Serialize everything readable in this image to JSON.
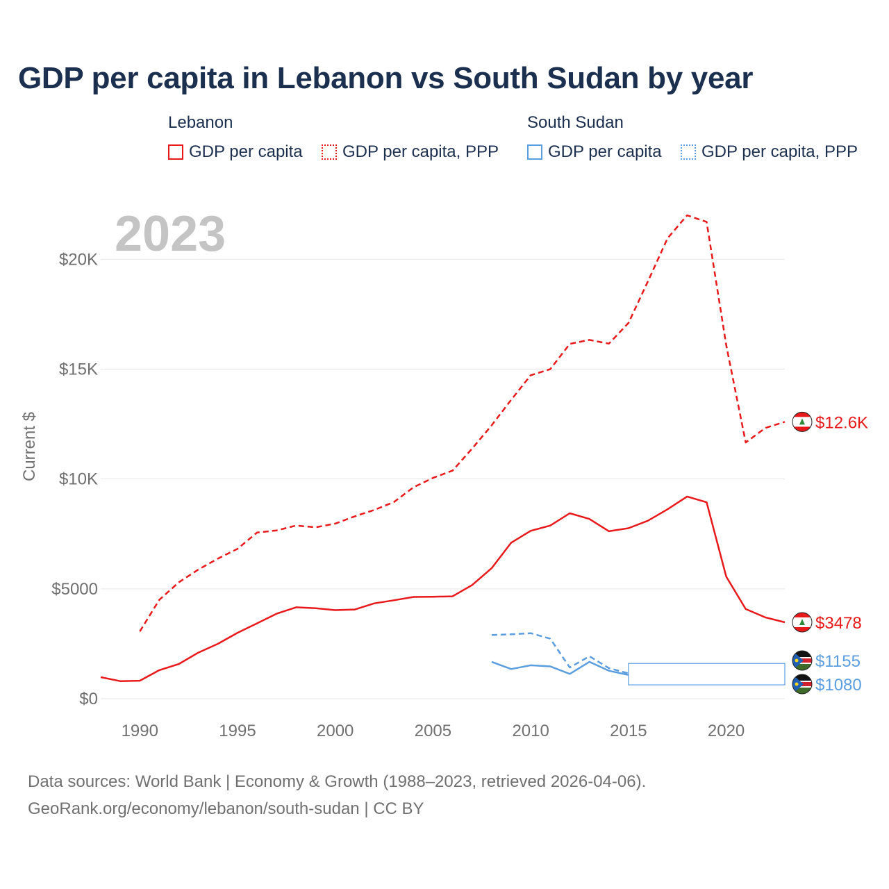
{
  "title": "GDP per capita in Lebanon vs South Sudan by year",
  "legend": {
    "groups": [
      {
        "name": "Lebanon",
        "items": [
          "GDP per capita",
          "GDP per capita, PPP"
        ],
        "color": "#e8191a"
      },
      {
        "name": "South Sudan",
        "items": [
          "GDP per capita",
          "GDP per capita, PPP"
        ],
        "color": "#5b9ee0"
      }
    ]
  },
  "year_watermark": "2023",
  "footer": {
    "line1": "Data sources: World Bank | Economy & Growth (1988–2023, retrieved 2026-04-06).",
    "line2": "GeoRank.org/economy/lebanon/south-sudan | CC BY"
  },
  "chart_data": {
    "type": "line",
    "title": "GDP per capita in Lebanon vs South Sudan by year",
    "xlabel": "",
    "ylabel": "Current $",
    "xlim": [
      1988,
      2023
    ],
    "ylim": [
      0,
      22000
    ],
    "x_ticks": [
      1990,
      1995,
      2000,
      2005,
      2010,
      2015,
      2020
    ],
    "y_ticks": [
      {
        "value": 0,
        "label": "$0"
      },
      {
        "value": 5000,
        "label": "$5000"
      },
      {
        "value": 10000,
        "label": "$10K"
      },
      {
        "value": 15000,
        "label": "$15K"
      },
      {
        "value": 20000,
        "label": "$20K"
      }
    ],
    "series": [
      {
        "name": "Lebanon GDP per capita",
        "country": "Lebanon",
        "color": "#e8191a",
        "dash": "solid",
        "end_label": "$3478",
        "points": [
          [
            1988,
            980
          ],
          [
            1989,
            800
          ],
          [
            1990,
            820
          ],
          [
            1991,
            1300
          ],
          [
            1992,
            1580
          ],
          [
            1993,
            2100
          ],
          [
            1994,
            2500
          ],
          [
            1995,
            3000
          ],
          [
            1996,
            3430
          ],
          [
            1997,
            3870
          ],
          [
            1998,
            4160
          ],
          [
            1999,
            4120
          ],
          [
            2000,
            4030
          ],
          [
            2001,
            4060
          ],
          [
            2002,
            4340
          ],
          [
            2003,
            4480
          ],
          [
            2004,
            4630
          ],
          [
            2005,
            4640
          ],
          [
            2006,
            4660
          ],
          [
            2007,
            5170
          ],
          [
            2008,
            5940
          ],
          [
            2009,
            7100
          ],
          [
            2010,
            7640
          ],
          [
            2011,
            7880
          ],
          [
            2012,
            8440
          ],
          [
            2013,
            8180
          ],
          [
            2014,
            7620
          ],
          [
            2015,
            7760
          ],
          [
            2016,
            8100
          ],
          [
            2017,
            8620
          ],
          [
            2018,
            9200
          ],
          [
            2019,
            8940
          ],
          [
            2020,
            5560
          ],
          [
            2021,
            4080
          ],
          [
            2022,
            3700
          ],
          [
            2023,
            3478
          ]
        ]
      },
      {
        "name": "Lebanon GDP per capita, PPP",
        "country": "Lebanon",
        "color": "#e8191a",
        "dash": "dashed",
        "end_label": "$12.6K",
        "points": [
          [
            1990,
            3060
          ],
          [
            1991,
            4500
          ],
          [
            1992,
            5300
          ],
          [
            1993,
            5880
          ],
          [
            1994,
            6380
          ],
          [
            1995,
            6820
          ],
          [
            1996,
            7560
          ],
          [
            1997,
            7660
          ],
          [
            1998,
            7880
          ],
          [
            1999,
            7800
          ],
          [
            2000,
            7970
          ],
          [
            2001,
            8300
          ],
          [
            2002,
            8590
          ],
          [
            2003,
            8950
          ],
          [
            2004,
            9620
          ],
          [
            2005,
            10050
          ],
          [
            2006,
            10380
          ],
          [
            2007,
            11380
          ],
          [
            2008,
            12440
          ],
          [
            2009,
            13600
          ],
          [
            2010,
            14720
          ],
          [
            2011,
            15000
          ],
          [
            2012,
            16150
          ],
          [
            2013,
            16330
          ],
          [
            2014,
            16160
          ],
          [
            2015,
            17100
          ],
          [
            2016,
            19000
          ],
          [
            2017,
            20950
          ],
          [
            2018,
            22000
          ],
          [
            2019,
            21700
          ],
          [
            2020,
            16100
          ],
          [
            2021,
            11660
          ],
          [
            2022,
            12320
          ],
          [
            2023,
            12600
          ]
        ]
      },
      {
        "name": "South Sudan GDP per capita",
        "country": "South Sudan",
        "color": "#5b9ee0",
        "dash": "solid",
        "end_label": "$1080",
        "points": [
          [
            2008,
            1680
          ],
          [
            2009,
            1350
          ],
          [
            2010,
            1520
          ],
          [
            2011,
            1470
          ],
          [
            2012,
            1130
          ],
          [
            2013,
            1680
          ],
          [
            2014,
            1270
          ],
          [
            2015,
            1080
          ]
        ]
      },
      {
        "name": "South Sudan GDP per capita, PPP",
        "country": "South Sudan",
        "color": "#5b9ee0",
        "dash": "dashed",
        "end_label": "$1155",
        "points": [
          [
            2008,
            2900
          ],
          [
            2009,
            2930
          ],
          [
            2010,
            2980
          ],
          [
            2011,
            2730
          ],
          [
            2012,
            1420
          ],
          [
            2013,
            1930
          ],
          [
            2014,
            1390
          ],
          [
            2015,
            1155
          ]
        ]
      }
    ]
  }
}
